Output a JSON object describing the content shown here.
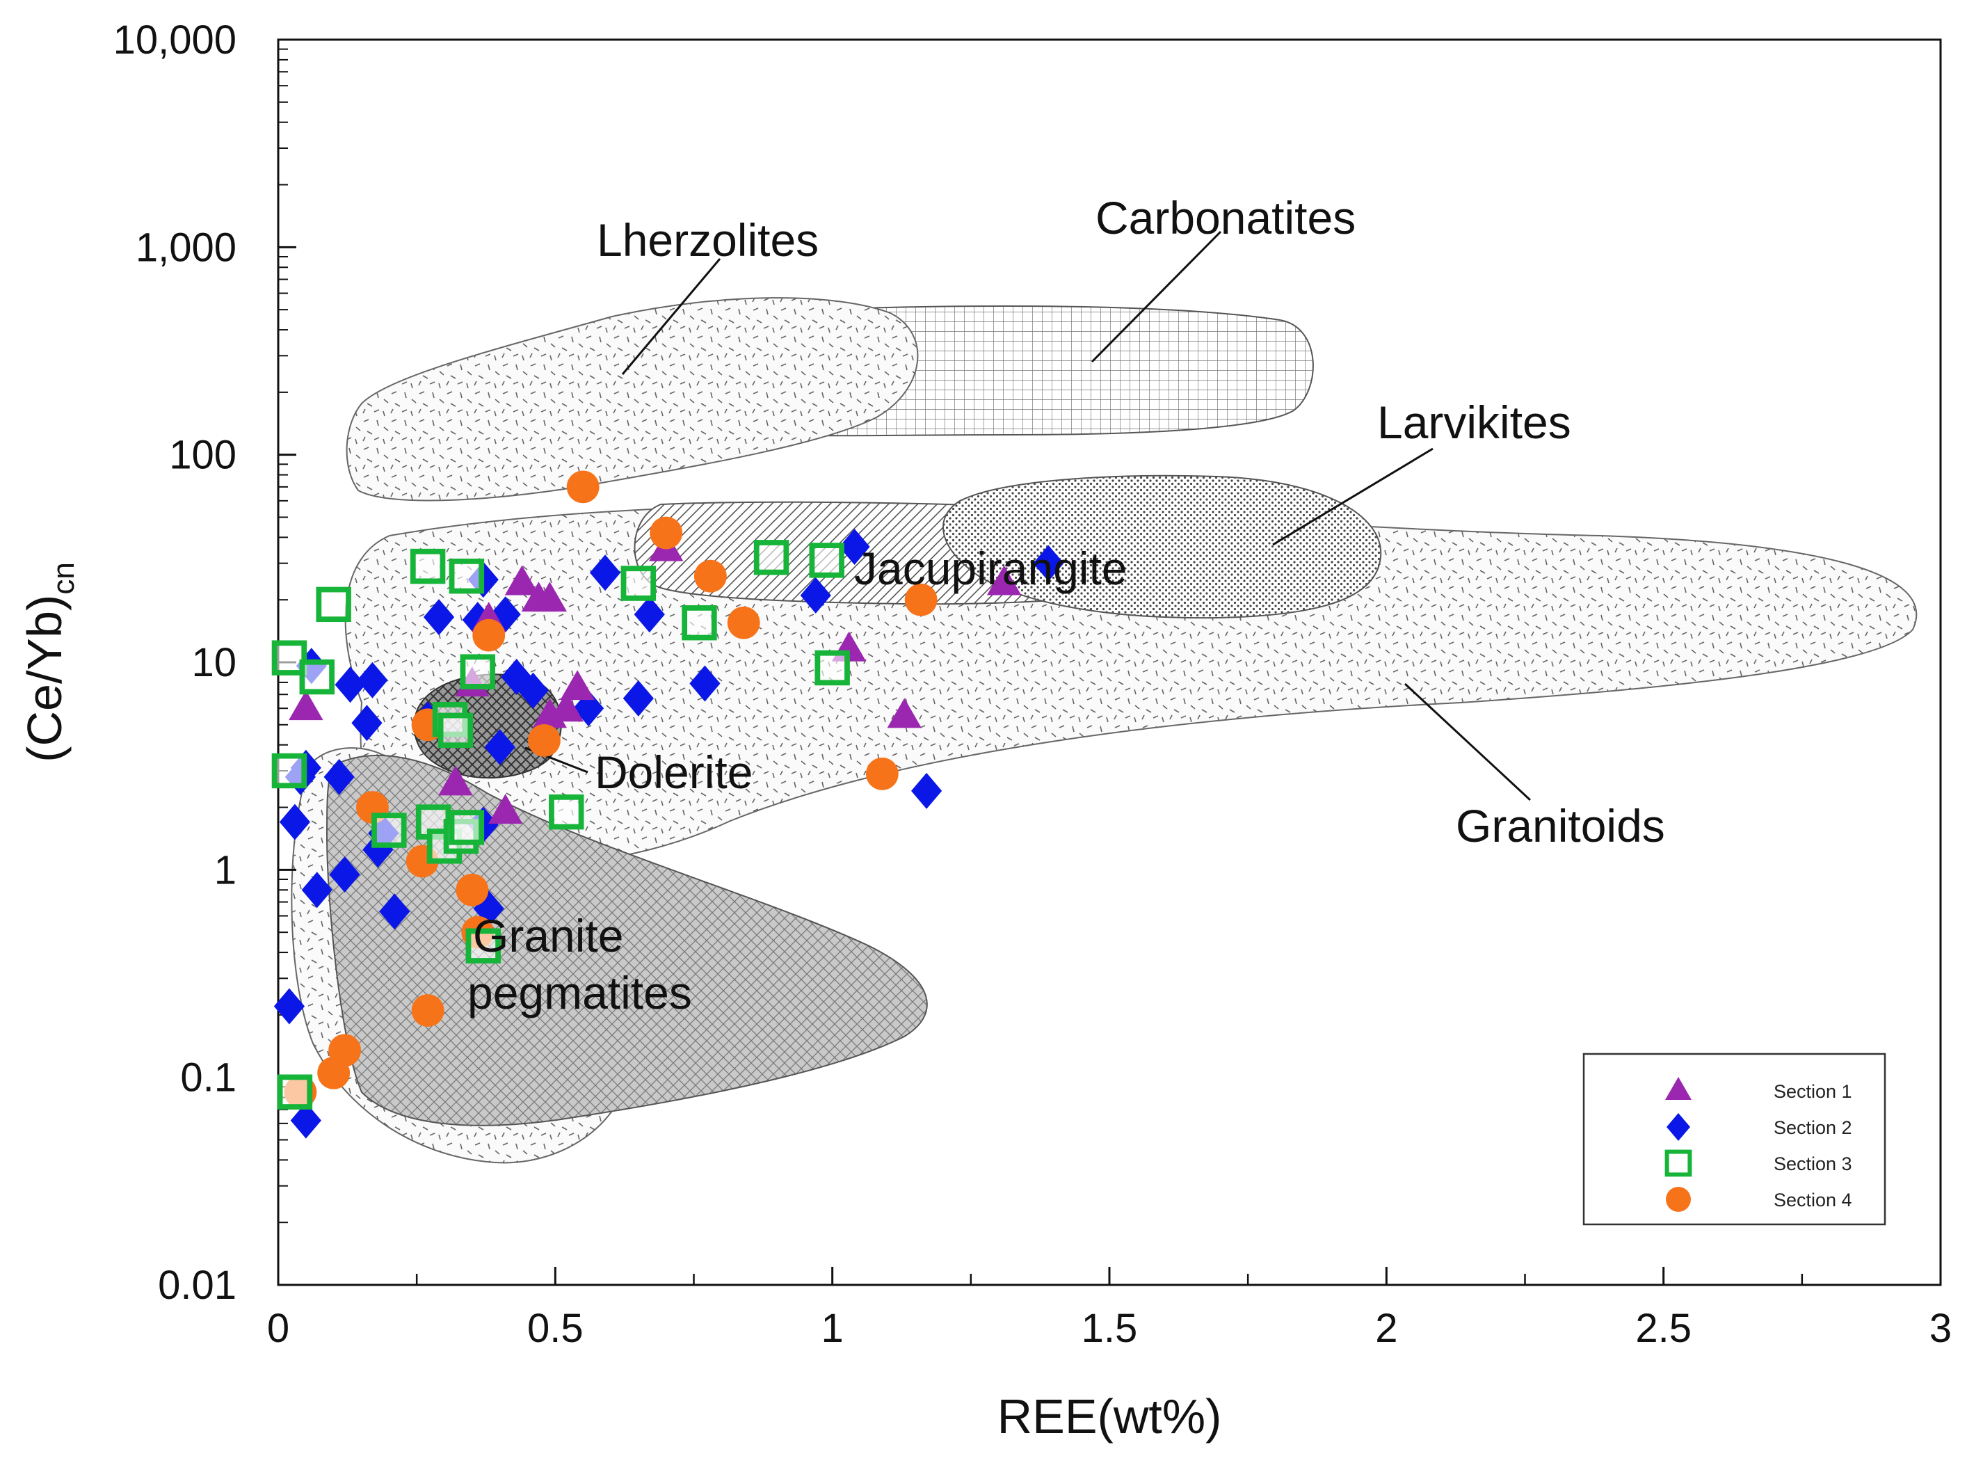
{
  "chart_data": {
    "type": "scatter",
    "xlabel": "REE(wt%)",
    "ylabel_main": "(Ce/Yb)",
    "ylabel_sub": "cn",
    "xlim": [
      0,
      3
    ],
    "ylim": [
      0.01,
      10000
    ],
    "y_scale": "log",
    "x_ticks": [
      {
        "v": 0,
        "label": "0"
      },
      {
        "v": 0.5,
        "label": "0.5"
      },
      {
        "v": 1,
        "label": "1"
      },
      {
        "v": 1.5,
        "label": "1.5"
      },
      {
        "v": 2,
        "label": "2"
      },
      {
        "v": 2.5,
        "label": "2.5"
      },
      {
        "v": 3,
        "label": "3"
      }
    ],
    "y_ticks": [
      {
        "v": 0.01,
        "label": "0.01"
      },
      {
        "v": 0.1,
        "label": "0.1"
      },
      {
        "v": 1,
        "label": "1"
      },
      {
        "v": 10,
        "label": "10"
      },
      {
        "v": 100,
        "label": "100"
      },
      {
        "v": 1000,
        "label": "1,000"
      },
      {
        "v": 10000,
        "label": "10,000"
      }
    ],
    "grid": false,
    "legend_position": "bottom-right",
    "series": [
      {
        "name": "Section 1",
        "marker": "triangle",
        "color": "#9b27b0",
        "points": [
          [
            0.05,
            6
          ],
          [
            0.32,
            2.6
          ],
          [
            0.35,
            7.8
          ],
          [
            0.38,
            16
          ],
          [
            0.41,
            1.9
          ],
          [
            0.44,
            24
          ],
          [
            0.47,
            20
          ],
          [
            0.49,
            20
          ],
          [
            0.49,
            5.5
          ],
          [
            0.52,
            5.9
          ],
          [
            0.54,
            7.5
          ],
          [
            0.7,
            35
          ],
          [
            1.03,
            11.5
          ],
          [
            1.13,
            5.5
          ],
          [
            1.31,
            24
          ]
        ]
      },
      {
        "name": "Section 2",
        "marker": "diamond",
        "color": "#0a17e6",
        "points": [
          [
            0.02,
            0.22
          ],
          [
            0.03,
            1.7
          ],
          [
            0.04,
            2.8
          ],
          [
            0.05,
            3.1
          ],
          [
            0.05,
            0.062
          ],
          [
            0.06,
            9.6
          ],
          [
            0.07,
            0.8
          ],
          [
            0.11,
            2.8
          ],
          [
            0.12,
            0.95
          ],
          [
            0.13,
            7.8
          ],
          [
            0.16,
            5.1
          ],
          [
            0.17,
            8.2
          ],
          [
            0.18,
            1.25
          ],
          [
            0.19,
            1.5
          ],
          [
            0.21,
            0.63
          ],
          [
            0.27,
            5.3
          ],
          [
            0.29,
            16.5
          ],
          [
            0.36,
            16
          ],
          [
            0.37,
            25
          ],
          [
            0.37,
            1.65
          ],
          [
            0.38,
            0.65
          ],
          [
            0.4,
            3.9
          ],
          [
            0.41,
            17
          ],
          [
            0.43,
            8.5
          ],
          [
            0.46,
            7.3
          ],
          [
            0.56,
            6
          ],
          [
            0.59,
            27
          ],
          [
            0.65,
            6.7
          ],
          [
            0.67,
            17
          ],
          [
            0.77,
            7.9
          ],
          [
            0.97,
            21
          ],
          [
            1.04,
            36
          ],
          [
            1.17,
            2.4
          ],
          [
            1.39,
            30
          ]
        ]
      },
      {
        "name": "Section 3",
        "marker": "square",
        "color": "#17b43a",
        "points": [
          [
            0.02,
            10.5
          ],
          [
            0.02,
            3
          ],
          [
            0.03,
            0.085
          ],
          [
            0.07,
            8.5
          ],
          [
            0.1,
            19
          ],
          [
            0.2,
            1.55
          ],
          [
            0.27,
            29
          ],
          [
            0.28,
            1.7
          ],
          [
            0.3,
            1.3
          ],
          [
            0.31,
            5.3
          ],
          [
            0.32,
            4.7
          ],
          [
            0.33,
            1.45
          ],
          [
            0.34,
            1.6
          ],
          [
            0.34,
            26
          ],
          [
            0.36,
            9
          ],
          [
            0.37,
            0.43
          ],
          [
            0.52,
            1.9
          ],
          [
            0.65,
            24
          ],
          [
            0.76,
            15.5
          ],
          [
            0.89,
            32
          ],
          [
            0.99,
            31
          ],
          [
            1.0,
            9.4
          ]
        ]
      },
      {
        "name": "Section 4",
        "marker": "circle",
        "color": "#f7731a",
        "points": [
          [
            0.04,
            0.085
          ],
          [
            0.1,
            0.105
          ],
          [
            0.12,
            0.135
          ],
          [
            0.17,
            2
          ],
          [
            0.26,
            1.1
          ],
          [
            0.27,
            0.21
          ],
          [
            0.27,
            5
          ],
          [
            0.35,
            0.8
          ],
          [
            0.36,
            0.5
          ],
          [
            0.38,
            13.5
          ],
          [
            0.48,
            4.2
          ],
          [
            0.55,
            70
          ],
          [
            0.7,
            42
          ],
          [
            0.78,
            26
          ],
          [
            0.84,
            15.5
          ],
          [
            1.09,
            2.9
          ],
          [
            1.16,
            20
          ]
        ]
      }
    ],
    "annotations": [
      {
        "text": "Lherzolites"
      },
      {
        "text": "Carbonatites"
      },
      {
        "text": "Larvikites"
      },
      {
        "text": "Jacupirangite"
      },
      {
        "text": "Dolerite"
      },
      {
        "text": "Granitoids"
      },
      {
        "text": "Granite"
      },
      {
        "text": "pegmatites"
      }
    ]
  }
}
